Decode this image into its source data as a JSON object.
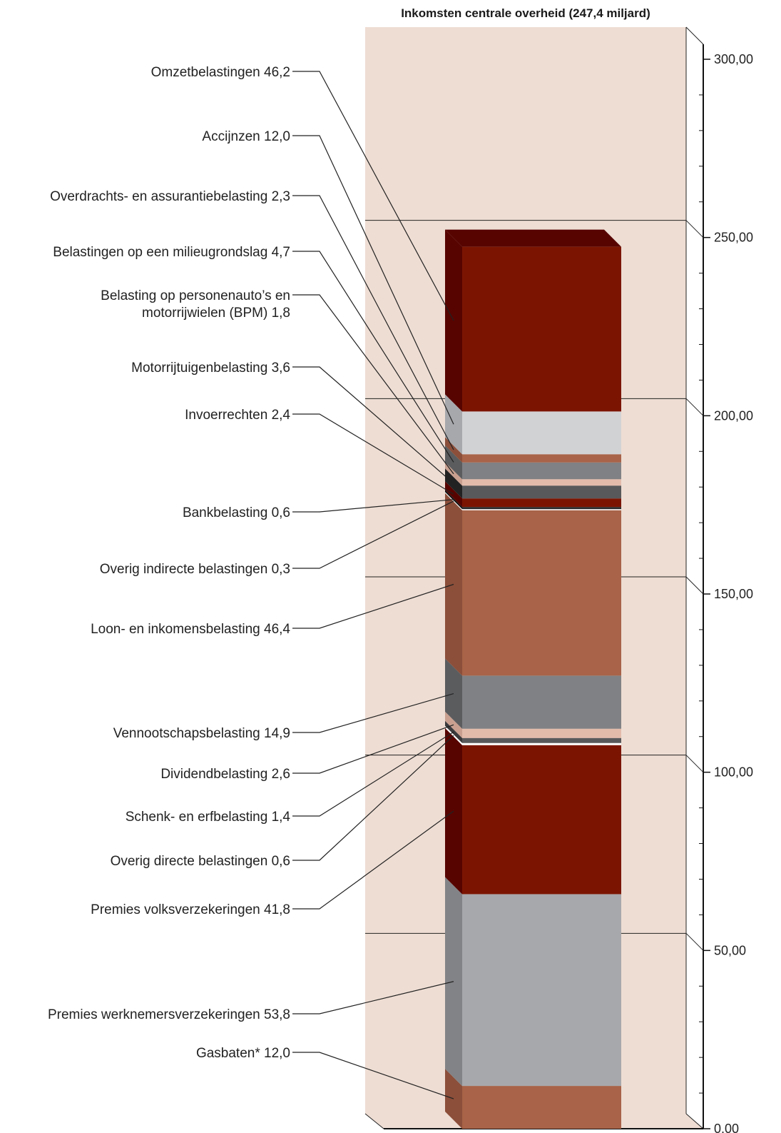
{
  "chart_data": {
    "type": "bar",
    "title": "Inkomsten centrale overheid (247,4 miljard)",
    "ylim": [
      0,
      300
    ],
    "major_ticks": [
      "0,00",
      "50,00",
      "100,00",
      "150,00",
      "200,00",
      "250,00",
      "300,00"
    ],
    "gridlines": true,
    "segments": [
      {
        "label": "Gasbaten* 12,0",
        "value": 12.0,
        "color": "#a86348",
        "side": "#8c4f3a"
      },
      {
        "label": "Premies werknemersverzekeringen 53,8",
        "value": 53.8,
        "color": "#a7a8ac",
        "side": "#828386"
      },
      {
        "label": "Premies volksverzekeringen 41,8",
        "value": 41.8,
        "color": "#7b1502",
        "side": "#570400"
      },
      {
        "label": "Overig directe belastingen 0,6",
        "value": 0.6,
        "color": "#ffffff",
        "side": "#ffffff"
      },
      {
        "label": "Schenk- en erfbelasting 1,4",
        "value": 1.4,
        "color": "#58595b",
        "side": "#3a3a3c"
      },
      {
        "label": "Dividendbelasting 2,6",
        "value": 2.6,
        "color": "#e3bbab",
        "side": "#c9a090"
      },
      {
        "label": "Vennootschapsbelasting 14,9",
        "value": 14.9,
        "color": "#808184",
        "side": "#5b5c5e"
      },
      {
        "label": "Loon- en inkomensbelasting 46,4",
        "value": 46.4,
        "color": "#a86348",
        "side": "#8c4f3a"
      },
      {
        "label": "Overig indirecte belastingen 0,3",
        "value": 0.3,
        "color": "#ffffff",
        "side": "#ffffff"
      },
      {
        "label": "Bankbelasting 0,6",
        "value": 0.6,
        "color": "#2b2b2b",
        "side": "#141414"
      },
      {
        "label": "Invoerrechten 2,4",
        "value": 2.4,
        "color": "#7b1502",
        "side": "#570400"
      },
      {
        "label": "Motorrijtuigenbelasting 3,6",
        "value": 3.6,
        "color": "#58595b",
        "side": "#222222"
      },
      {
        "label": "Belasting op personenauto’s en motorrijwielen (BPM) 1,8",
        "value": 1.8,
        "color": "#e3bbab",
        "side": "#c9a090"
      },
      {
        "label": "Belastingen op een milieugrondslag 4,7",
        "value": 4.7,
        "color": "#808184",
        "side": "#5b5c5e"
      },
      {
        "label": "Overdrachts- en assurantiebelasting 2,3",
        "value": 2.3,
        "color": "#a86348",
        "side": "#8c4f3a"
      },
      {
        "label": "Accijnzen 12,0",
        "value": 12.0,
        "color": "#d1d2d4",
        "side": "#a7a8ac"
      },
      {
        "label": "Omzetbelastingen 46,2",
        "value": 46.2,
        "color": "#7b1502",
        "side": "#570400"
      }
    ],
    "top_color": "#570400",
    "wall_color": "#eeddd3"
  }
}
